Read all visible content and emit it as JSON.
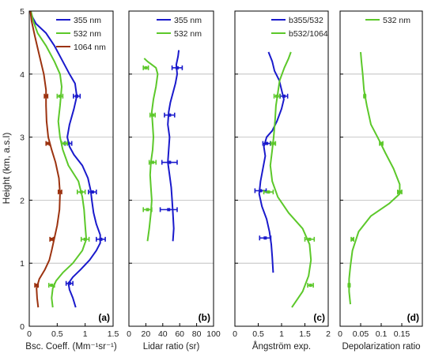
{
  "figure": {
    "ylabel": "Height (km, a.s.l)"
  },
  "chart_data": [
    {
      "type": "line",
      "panel_label": "(a)",
      "xlabel": "Bsc. Coeff. (Mm⁻¹sr⁻¹)",
      "ylabel": "Height (km, a.s.l)",
      "xlim": [
        0,
        1.5
      ],
      "ylim": [
        0,
        5
      ],
      "xticks": [
        "0",
        "0.5",
        "1",
        "1.5"
      ],
      "yticks": [
        "0",
        "1",
        "2",
        "3",
        "4",
        "5"
      ],
      "grid": "horizontal",
      "legend": "top-right",
      "series": [
        {
          "name": "355 nm",
          "color": "#1a1acc",
          "points": [
            [
              0.83,
              0.3
            ],
            [
              0.78,
              0.45
            ],
            [
              0.72,
              0.58
            ],
            [
              0.7,
              0.68
            ],
            [
              0.78,
              0.78
            ],
            [
              0.92,
              0.9
            ],
            [
              1.08,
              1.05
            ],
            [
              1.2,
              1.2
            ],
            [
              1.27,
              1.32
            ],
            [
              1.27,
              1.45
            ],
            [
              1.2,
              1.62
            ],
            [
              1.15,
              1.8
            ],
            [
              1.12,
              2.0
            ],
            [
              1.1,
              2.15
            ],
            [
              1.05,
              2.35
            ],
            [
              0.95,
              2.55
            ],
            [
              0.8,
              2.72
            ],
            [
              0.72,
              2.85
            ],
            [
              0.68,
              3.0
            ],
            [
              0.72,
              3.2
            ],
            [
              0.8,
              3.45
            ],
            [
              0.85,
              3.65
            ],
            [
              0.82,
              3.85
            ],
            [
              0.72,
              4.0
            ],
            [
              0.6,
              4.2
            ],
            [
              0.45,
              4.45
            ],
            [
              0.3,
              4.65
            ],
            [
              0.12,
              4.8
            ],
            [
              0.06,
              4.9
            ],
            [
              0.02,
              5.0
            ]
          ],
          "errors": [
            [
              0.72,
              0.68,
              0.06
            ],
            [
              1.28,
              1.38,
              0.08
            ],
            [
              1.13,
              2.13,
              0.07
            ],
            [
              0.7,
              2.9,
              0.06
            ],
            [
              0.85,
              3.65,
              0.06
            ]
          ]
        },
        {
          "name": "532 nm",
          "color": "#5cc82a",
          "points": [
            [
              0.42,
              0.3
            ],
            [
              0.4,
              0.45
            ],
            [
              0.42,
              0.6
            ],
            [
              0.48,
              0.72
            ],
            [
              0.6,
              0.85
            ],
            [
              0.78,
              1.0
            ],
            [
              0.95,
              1.2
            ],
            [
              1.02,
              1.38
            ],
            [
              1.0,
              1.6
            ],
            [
              0.98,
              1.85
            ],
            [
              0.95,
              2.05
            ],
            [
              0.88,
              2.3
            ],
            [
              0.7,
              2.55
            ],
            [
              0.6,
              2.8
            ],
            [
              0.55,
              3.0
            ],
            [
              0.52,
              3.25
            ],
            [
              0.55,
              3.5
            ],
            [
              0.58,
              3.8
            ],
            [
              0.55,
              4.0
            ],
            [
              0.45,
              4.2
            ],
            [
              0.3,
              4.45
            ],
            [
              0.15,
              4.65
            ],
            [
              0.07,
              4.85
            ],
            [
              0.03,
              5.0
            ]
          ],
          "errors": [
            [
              0.4,
              0.65,
              0.05
            ],
            [
              1.0,
              1.38,
              0.07
            ],
            [
              0.93,
              2.13,
              0.07
            ],
            [
              0.63,
              2.9,
              0.05
            ],
            [
              0.55,
              3.65,
              0.05
            ]
          ]
        },
        {
          "name": "1064 nm",
          "color": "#9c3310",
          "points": [
            [
              0.16,
              0.3
            ],
            [
              0.14,
              0.45
            ],
            [
              0.13,
              0.6
            ],
            [
              0.18,
              0.75
            ],
            [
              0.28,
              0.9
            ],
            [
              0.36,
              1.05
            ],
            [
              0.4,
              1.2
            ],
            [
              0.45,
              1.4
            ],
            [
              0.5,
              1.6
            ],
            [
              0.54,
              1.85
            ],
            [
              0.55,
              2.1
            ],
            [
              0.53,
              2.35
            ],
            [
              0.47,
              2.6
            ],
            [
              0.4,
              2.8
            ],
            [
              0.34,
              3.0
            ],
            [
              0.31,
              3.25
            ],
            [
              0.3,
              3.5
            ],
            [
              0.3,
              3.75
            ],
            [
              0.26,
              4.0
            ],
            [
              0.18,
              4.3
            ],
            [
              0.1,
              4.6
            ],
            [
              0.04,
              4.85
            ],
            [
              0.02,
              5.0
            ]
          ],
          "errors": [
            [
              0.13,
              0.65,
              0.03
            ],
            [
              0.4,
              1.38,
              0.03
            ],
            [
              0.55,
              2.13,
              0.03
            ],
            [
              0.33,
              2.9,
              0.03
            ],
            [
              0.3,
              3.65,
              0.03
            ]
          ]
        }
      ]
    },
    {
      "type": "line",
      "panel_label": "(b)",
      "xlabel": "Lidar ratio (sr)",
      "xlim": [
        0,
        100
      ],
      "ylim": [
        0,
        5
      ],
      "xticks": [
        "0",
        "20",
        "40",
        "60",
        "80",
        "100"
      ],
      "grid": "horizontal",
      "legend": "top-right",
      "series": [
        {
          "name": "355 nm",
          "color": "#1a1acc",
          "points": [
            [
              52,
              1.35
            ],
            [
              53,
              1.55
            ],
            [
              52,
              1.8
            ],
            [
              51,
              2.0
            ],
            [
              50,
              2.2
            ],
            [
              48,
              2.4
            ],
            [
              46,
              2.6
            ],
            [
              47,
              2.8
            ],
            [
              48,
              3.0
            ],
            [
              46,
              3.2
            ],
            [
              47,
              3.4
            ],
            [
              49,
              3.55
            ],
            [
              52,
              3.7
            ],
            [
              55,
              3.85
            ],
            [
              57,
              4.0
            ],
            [
              56,
              4.15
            ],
            [
              58,
              4.28
            ],
            [
              59,
              4.38
            ]
          ],
          "errors": [
            [
              47,
              1.85,
              10
            ],
            [
              48,
              2.6,
              9
            ],
            [
              48,
              3.35,
              6
            ],
            [
              57,
              4.1,
              6
            ]
          ]
        },
        {
          "name": "532 nm",
          "color": "#5cc82a",
          "points": [
            [
              22,
              1.35
            ],
            [
              24,
              1.55
            ],
            [
              26,
              1.8
            ],
            [
              27,
              2.0
            ],
            [
              26,
              2.2
            ],
            [
              25,
              2.4
            ],
            [
              26,
              2.6
            ],
            [
              28,
              2.8
            ],
            [
              29,
              3.0
            ],
            [
              28,
              3.2
            ],
            [
              27,
              3.4
            ],
            [
              29,
              3.6
            ],
            [
              32,
              3.8
            ],
            [
              34,
              4.0
            ],
            [
              32,
              4.1
            ],
            [
              27,
              4.15
            ],
            [
              22,
              4.2
            ],
            [
              18,
              4.25
            ]
          ],
          "errors": [
            [
              22,
              1.85,
              5
            ],
            [
              28,
              2.6,
              4
            ],
            [
              28,
              3.35,
              3
            ],
            [
              20,
              4.1,
              3
            ]
          ]
        }
      ]
    },
    {
      "type": "line",
      "panel_label": "(c)",
      "xlabel": "Ångström exp.",
      "xlim": [
        0,
        2
      ],
      "ylim": [
        0,
        5
      ],
      "xticks": [
        "0",
        "0.5",
        "1",
        "1.5",
        "2"
      ],
      "grid": "horizontal",
      "legend": "top-right",
      "series": [
        {
          "name": "b355/532",
          "color": "#1a1acc",
          "points": [
            [
              0.82,
              0.85
            ],
            [
              0.8,
              1.1
            ],
            [
              0.78,
              1.3
            ],
            [
              0.74,
              1.5
            ],
            [
              0.68,
              1.7
            ],
            [
              0.58,
              1.9
            ],
            [
              0.52,
              2.1
            ],
            [
              0.55,
              2.3
            ],
            [
              0.6,
              2.5
            ],
            [
              0.65,
              2.7
            ],
            [
              0.62,
              2.85
            ],
            [
              0.68,
              3.0
            ],
            [
              0.8,
              3.1
            ],
            [
              0.9,
              3.25
            ],
            [
              1.0,
              3.45
            ],
            [
              1.05,
              3.6
            ],
            [
              1.0,
              3.75
            ],
            [
              0.95,
              3.9
            ],
            [
              0.85,
              4.05
            ],
            [
              0.8,
              4.2
            ],
            [
              0.72,
              4.35
            ]
          ],
          "errors": [
            [
              0.65,
              1.4,
              0.12
            ],
            [
              0.55,
              2.15,
              0.12
            ],
            [
              0.68,
              2.9,
              0.08
            ],
            [
              1.05,
              3.65,
              0.08
            ]
          ]
        },
        {
          "name": "b532/1064",
          "color": "#5cc82a",
          "points": [
            [
              1.22,
              0.3
            ],
            [
              1.45,
              0.55
            ],
            [
              1.58,
              0.8
            ],
            [
              1.63,
              1.05
            ],
            [
              1.6,
              1.3
            ],
            [
              1.45,
              1.55
            ],
            [
              1.15,
              1.8
            ],
            [
              0.92,
              2.05
            ],
            [
              0.8,
              2.3
            ],
            [
              0.76,
              2.55
            ],
            [
              0.8,
              2.8
            ],
            [
              0.83,
              3.0
            ],
            [
              0.86,
              3.25
            ],
            [
              0.88,
              3.5
            ],
            [
              0.92,
              3.7
            ],
            [
              0.96,
              3.9
            ],
            [
              1.06,
              4.1
            ],
            [
              1.15,
              4.25
            ],
            [
              1.2,
              4.35
            ]
          ],
          "errors": [
            [
              1.62,
              0.65,
              0.06
            ],
            [
              1.6,
              1.38,
              0.1
            ],
            [
              0.72,
              2.13,
              0.1
            ],
            [
              0.82,
              2.9,
              0.05
            ],
            [
              0.9,
              3.65,
              0.06
            ]
          ]
        }
      ]
    },
    {
      "type": "line",
      "panel_label": "(d)",
      "xlabel": "Depolarization ratio",
      "xlim": [
        0,
        0.2
      ],
      "ylim": [
        0,
        5
      ],
      "xticks": [
        "0",
        "0.05",
        "0.1",
        "0.15"
      ],
      "grid": "horizontal",
      "legend": "top-right",
      "series": [
        {
          "name": "532 nm",
          "color": "#5cc82a",
          "points": [
            [
              0.025,
              0.35
            ],
            [
              0.022,
              0.55
            ],
            [
              0.022,
              0.75
            ],
            [
              0.025,
              0.95
            ],
            [
              0.03,
              1.2
            ],
            [
              0.045,
              1.5
            ],
            [
              0.075,
              1.75
            ],
            [
              0.12,
              1.95
            ],
            [
              0.145,
              2.1
            ],
            [
              0.145,
              2.25
            ],
            [
              0.13,
              2.5
            ],
            [
              0.11,
              2.75
            ],
            [
              0.095,
              2.95
            ],
            [
              0.075,
              3.2
            ],
            [
              0.065,
              3.5
            ],
            [
              0.058,
              3.75
            ],
            [
              0.055,
              4.0
            ],
            [
              0.052,
              4.2
            ],
            [
              0.05,
              4.35
            ]
          ],
          "errors": [
            [
              0.022,
              0.65,
              0.002
            ],
            [
              0.03,
              1.38,
              0.003
            ],
            [
              0.145,
              2.13,
              0.005
            ],
            [
              0.1,
              2.9,
              0.004
            ],
            [
              0.06,
              3.65,
              0.002
            ]
          ]
        }
      ]
    }
  ]
}
